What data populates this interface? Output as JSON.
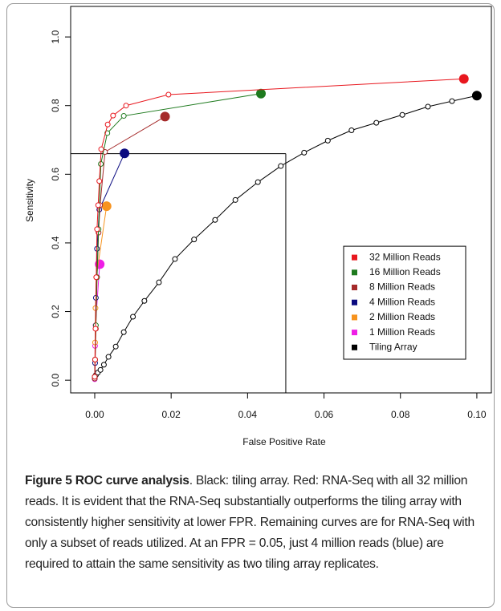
{
  "chart_data": {
    "type": "line",
    "xlabel": "False Positive Rate",
    "ylabel": "Sensitivity",
    "xlim": [
      -0.0063,
      0.1038
    ],
    "ylim": [
      -0.037,
      1.089
    ],
    "xticks": [
      {
        "value": 0,
        "label": "0.00"
      },
      {
        "value": 0.02,
        "label": "0.02"
      },
      {
        "value": 0.04,
        "label": "0.04"
      },
      {
        "value": 0.06,
        "label": "0.06"
      },
      {
        "value": 0.08,
        "label": "0.08"
      },
      {
        "value": 0.1,
        "label": "0.10"
      }
    ],
    "yticks": [
      {
        "value": 0,
        "label": "0.0"
      },
      {
        "value": 0.2,
        "label": "0.2"
      },
      {
        "value": 0.4,
        "label": "0.4"
      },
      {
        "value": 0.6,
        "label": "0.6"
      },
      {
        "value": 0.8,
        "label": "0.8"
      },
      {
        "value": 1,
        "label": "1.0"
      }
    ],
    "legend_position": "lower right",
    "last_point_filled": true,
    "reference_lines": {
      "x": 0.05,
      "y": 0.66
    },
    "series": [
      {
        "name": "32 Million Reads",
        "color": "#e8171e",
        "x": [
          0,
          0.0001,
          0.0002,
          0.0004,
          0.0006,
          0.0009,
          0.0012,
          0.0017,
          0.0034,
          0.0048,
          0.0082,
          0.0193,
          0.0966
        ],
        "y": [
          0.01,
          0.06,
          0.15,
          0.3,
          0.44,
          0.51,
          0.58,
          0.673,
          0.745,
          0.771,
          0.8,
          0.832,
          0.878
        ]
      },
      {
        "name": "16 Million Reads",
        "color": "#1e7a1e",
        "x": [
          0,
          0.0001,
          0.0003,
          0.0006,
          0.001,
          0.0016,
          0.0033,
          0.0076,
          0.0435
        ],
        "y": [
          0.01,
          0.06,
          0.16,
          0.3,
          0.44,
          0.63,
          0.72,
          0.77,
          0.835
        ]
      },
      {
        "name": "8 Million Reads",
        "color": "#a52a2a",
        "x": [
          0,
          0.0001,
          0.0003,
          0.0006,
          0.001,
          0.0014,
          0.0027,
          0.0184
        ],
        "y": [
          0.005,
          0.06,
          0.15,
          0.3,
          0.43,
          0.51,
          0.665,
          0.768
        ]
      },
      {
        "name": "4 Million Reads",
        "color": "#0b0b80",
        "x": [
          0,
          0.0001,
          0.0003,
          0.0006,
          0.0012,
          0.0078
        ],
        "y": [
          0.005,
          0.05,
          0.24,
          0.383,
          0.497,
          0.661
        ]
      },
      {
        "name": "2 Million Reads",
        "color": "#f7931e",
        "x": [
          0,
          0.0001,
          0.0002,
          0.0004,
          0.0031
        ],
        "y": [
          0.005,
          0.11,
          0.21,
          0.3,
          0.507
        ]
      },
      {
        "name": "1 Million Reads",
        "color": "#ee1ee6",
        "x": [
          0,
          0.0001,
          0.0002,
          0.0013
        ],
        "y": [
          0.003,
          0.1,
          0.16,
          0.338
        ]
      },
      {
        "name": "Tiling Array",
        "color": "#000000",
        "x": [
          0,
          0.0003,
          0.0008,
          0.0015,
          0.0024,
          0.0036,
          0.0055,
          0.0076,
          0.01,
          0.013,
          0.0168,
          0.021,
          0.026,
          0.0315,
          0.0368,
          0.0427,
          0.0487,
          0.0548,
          0.061,
          0.0672,
          0.0737,
          0.0805,
          0.0872,
          0.0935,
          0.1
        ],
        "y": [
          0.01,
          0.015,
          0.022,
          0.03,
          0.045,
          0.068,
          0.098,
          0.14,
          0.185,
          0.231,
          0.285,
          0.353,
          0.41,
          0.467,
          0.525,
          0.577,
          0.624,
          0.663,
          0.698,
          0.728,
          0.75,
          0.773,
          0.797,
          0.813,
          0.829
        ]
      }
    ]
  },
  "caption": {
    "label": "Figure 5",
    "title": "ROC curve analysis",
    "text": ". Black: tiling array. Red: RNA-Seq with all 32 million reads. It is evident that the RNA-Seq substantially outperforms the tiling array with consistently higher sensitivity at lower FPR. Remaining curves are for RNA-Seq with only a subset of reads utilized. At an FPR = 0.05, just 4 million reads (blue) are required to attain the same sensitivity as two tiling array replicates."
  }
}
